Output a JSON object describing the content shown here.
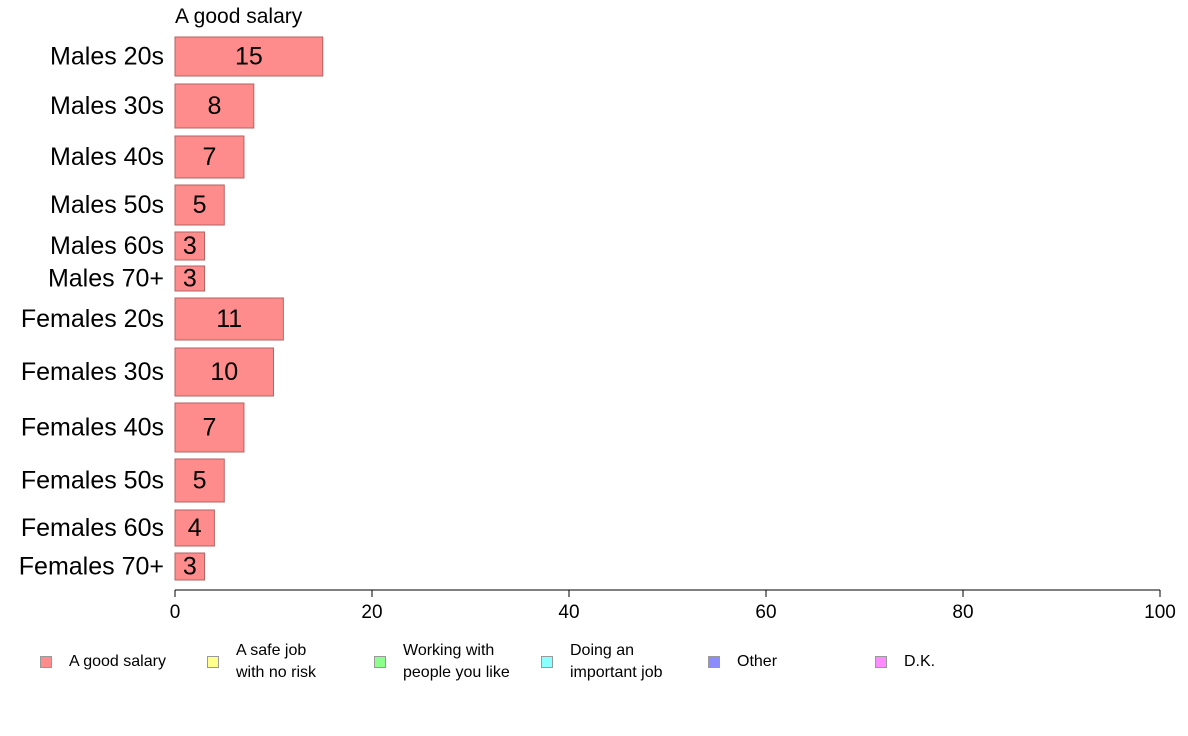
{
  "chart_data": {
    "type": "bar",
    "orientation": "horizontal",
    "title": "A good salary",
    "categories": [
      "Males 20s",
      "Males 30s",
      "Males 40s",
      "Males 50s",
      "Males 60s",
      "Males 70+",
      "Females 20s",
      "Females 30s",
      "Females 40s",
      "Females 50s",
      "Females 60s",
      "Females 70+"
    ],
    "series": [
      {
        "name": "A good salary",
        "values": [
          15,
          8,
          7,
          5,
          3,
          3,
          11,
          10,
          7,
          5,
          4,
          3
        ],
        "color": "#ff8c8c"
      }
    ],
    "xlim": [
      0,
      100
    ],
    "xticks": [
      0,
      20,
      40,
      60,
      80,
      100
    ],
    "grid": false,
    "legend": {
      "placement": "bottom",
      "items": [
        {
          "label": "A good salary",
          "color": "#ff8c8c"
        },
        {
          "label": "A safe job\nwith no risk",
          "color": "#ffff8c"
        },
        {
          "label": "Working with\npeople you like",
          "color": "#8cff8c"
        },
        {
          "label": "Doing an\nimportant job",
          "color": "#8cffff"
        },
        {
          "label": "Other",
          "color": "#8c8cff"
        },
        {
          "label": "D.K.",
          "color": "#ff8cff"
        }
      ]
    }
  }
}
